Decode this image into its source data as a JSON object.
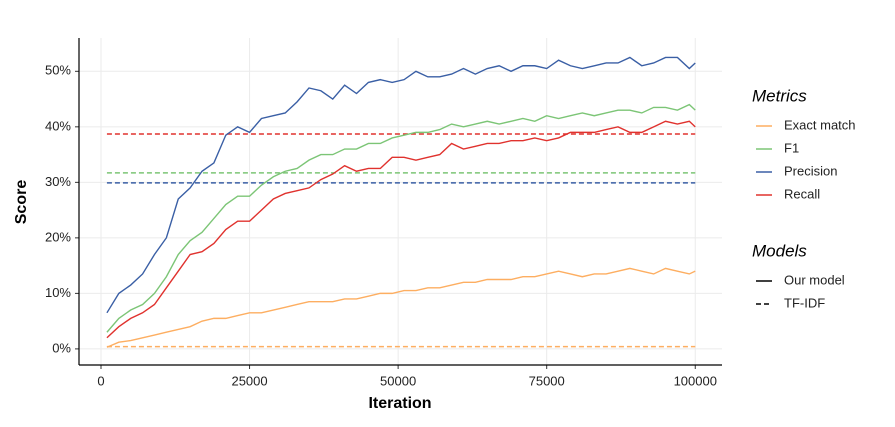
{
  "chart_data": {
    "type": "line",
    "xlabel": "Iteration",
    "ylabel": "Score",
    "x": [
      1000,
      3000,
      5000,
      7000,
      9000,
      11000,
      13000,
      15000,
      17000,
      19000,
      21000,
      23000,
      25000,
      27000,
      29000,
      31000,
      33000,
      35000,
      37000,
      39000,
      41000,
      43000,
      45000,
      47000,
      49000,
      51000,
      53000,
      55000,
      57000,
      59000,
      61000,
      63000,
      65000,
      67000,
      69000,
      71000,
      73000,
      75000,
      77000,
      79000,
      81000,
      83000,
      85000,
      87000,
      89000,
      91000,
      93000,
      95000,
      97000,
      99000,
      100000
    ],
    "series": [
      {
        "name": "Exact match",
        "color": "#fdae61",
        "baseline": 0.4,
        "values": [
          0.3,
          1.2,
          1.5,
          2,
          2.5,
          3,
          3.5,
          4,
          5,
          5.5,
          5.5,
          6,
          6.5,
          6.5,
          7,
          7.5,
          8,
          8.5,
          8.5,
          8.5,
          9,
          9,
          9.5,
          10,
          10,
          10.5,
          10.5,
          11,
          11,
          11.5,
          12,
          12,
          12.5,
          12.5,
          12.5,
          13,
          13,
          13.5,
          14,
          13.5,
          13,
          13.5,
          13.5,
          14,
          14.5,
          14,
          13.5,
          14.5,
          14,
          13.5,
          14
        ]
      },
      {
        "name": "F1",
        "color": "#7cc576",
        "baseline": 31.7,
        "values": [
          3,
          5.5,
          7,
          8,
          10,
          13,
          17,
          19.5,
          21,
          23.5,
          26,
          27.5,
          27.5,
          29.5,
          31,
          32,
          32.5,
          34,
          35,
          35,
          36,
          36,
          37,
          37,
          38,
          38.5,
          39,
          39,
          39.5,
          40.5,
          40,
          40.5,
          41,
          40.5,
          41,
          41.5,
          41,
          42,
          41.5,
          42,
          42.5,
          42,
          42.5,
          43,
          43,
          42.5,
          43.5,
          43.5,
          43,
          44,
          43
        ]
      },
      {
        "name": "Precision",
        "color": "#3a5fa5",
        "baseline": 29.9,
        "values": [
          6.5,
          10,
          11.5,
          13.5,
          17,
          20,
          27,
          29,
          32,
          33.5,
          38.5,
          40,
          39,
          41.5,
          42,
          42.5,
          44.5,
          47,
          46.5,
          45,
          47.5,
          46,
          48,
          48.5,
          48,
          48.5,
          50,
          49,
          49,
          49.5,
          50.5,
          49.5,
          50.5,
          51,
          50,
          51,
          51,
          50.5,
          52,
          51,
          50.5,
          51,
          51.5,
          51.5,
          52.5,
          51,
          51.5,
          52.5,
          52.5,
          50.5,
          51.5
        ]
      },
      {
        "name": "Recall",
        "color": "#e0322e",
        "baseline": 38.7,
        "values": [
          2,
          4,
          5.5,
          6.5,
          8,
          11,
          14,
          17,
          17.5,
          19,
          21.5,
          23,
          23,
          25,
          27,
          28,
          28.5,
          29,
          30.5,
          31.5,
          33,
          32,
          32.5,
          32.5,
          34.5,
          34.5,
          34,
          34.5,
          35,
          37,
          36,
          36.5,
          37,
          37,
          37.5,
          37.5,
          38,
          37.5,
          38,
          39,
          39,
          39,
          39.5,
          40,
          39,
          39,
          40,
          41,
          40.5,
          41,
          40
        ]
      }
    ],
    "legend": {
      "position": "right",
      "metrics_title": "Metrics",
      "models_title": "Models",
      "models": [
        "Our model",
        "TF-IDF"
      ]
    },
    "xlim": [
      -3700,
      104500
    ],
    "ylim": [
      -2.9,
      56
    ],
    "xticks": [
      0,
      25000,
      50000,
      75000,
      100000
    ],
    "yticks": [
      {
        "value": 0,
        "label": "0%"
      },
      {
        "value": 10,
        "label": "10%"
      },
      {
        "value": 20,
        "label": "20%"
      },
      {
        "value": 30,
        "label": "30%"
      },
      {
        "value": 40,
        "label": "40%"
      },
      {
        "value": 50,
        "label": "50%"
      }
    ],
    "grid": true
  }
}
